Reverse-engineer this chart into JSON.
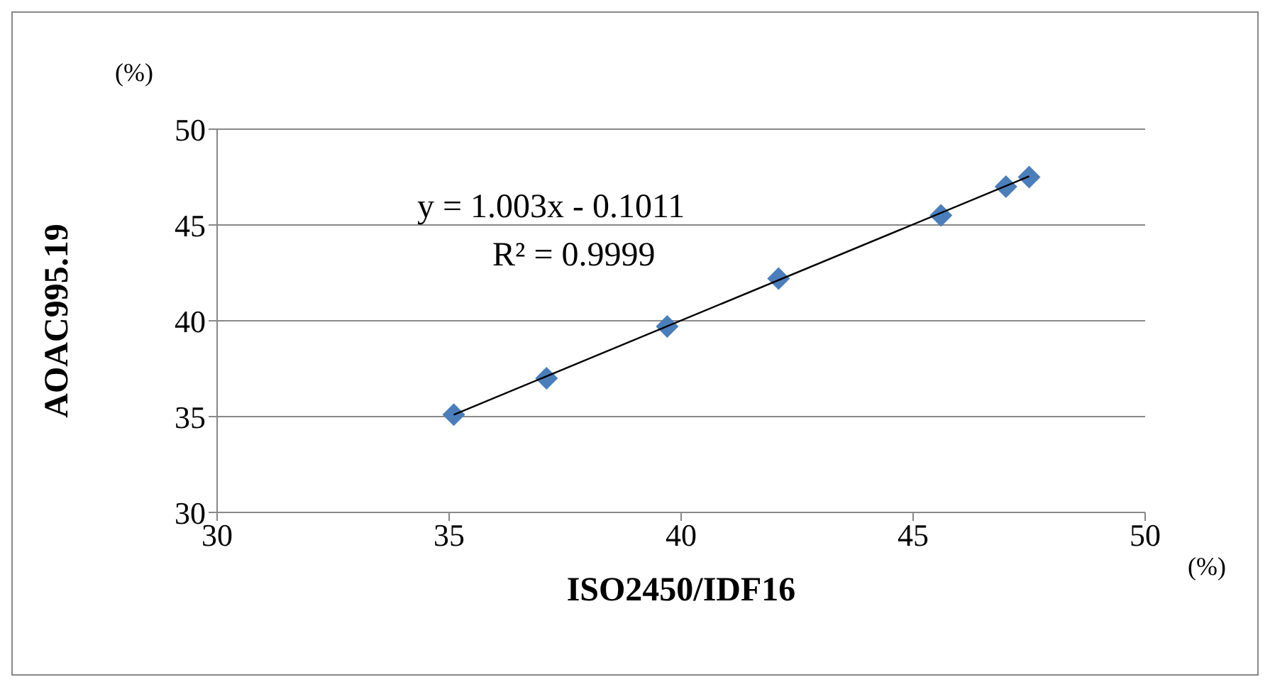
{
  "chart_data": {
    "type": "scatter",
    "xlabel": "ISO2450/IDF16",
    "ylabel": "AOAC995.19",
    "annotations": [
      "(%)",
      "(%)",
      "y = 1.003x - 0.1011",
      "R² = 0.9999"
    ],
    "xlim": [
      30,
      50
    ],
    "xticks": [
      30,
      35,
      40,
      45,
      50
    ],
    "ylim": [
      30,
      50
    ],
    "yticks": [
      30,
      35,
      40,
      45,
      50
    ],
    "grid": "y",
    "series": [
      {
        "marker": "diamond",
        "color": "#4a7ebb",
        "x": [
          35.1,
          37.1,
          39.7,
          42.1,
          45.6,
          47.0,
          47.5
        ],
        "values": [
          35.1,
          37.0,
          39.7,
          42.2,
          45.5,
          47.0,
          47.5
        ]
      },
      {
        "type": "line",
        "marker": "none",
        "color": "#000000",
        "x": [
          35.1,
          47.5
        ],
        "values": [
          35.1,
          47.54
        ]
      }
    ]
  }
}
